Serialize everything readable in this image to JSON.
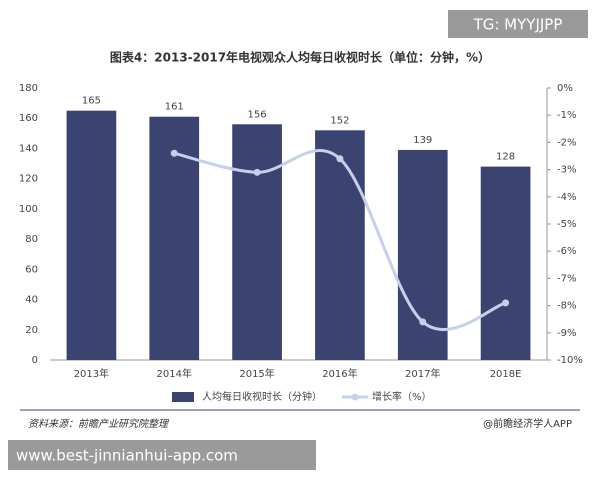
{
  "watermark": "TG: MYYJJPP",
  "source": "资料来源：前瞻产业研究院整理",
  "credit": "@前瞻经济学人APP",
  "footer_url": "www.best-jinnianhui-app.com",
  "chart_data": {
    "type": "bar",
    "title": "图表4：2013-2017年电视观众人均每日收视时长（单位：分钟，%）",
    "categories": [
      "2013年",
      "2014年",
      "2015年",
      "2016年",
      "2017年",
      "2018E"
    ],
    "series": [
      {
        "name": "人均每日收视时长（分钟）",
        "type": "bar",
        "color": "#3b4470",
        "values": [
          165,
          161,
          156,
          152,
          139,
          128
        ]
      },
      {
        "name": "增长率（%）",
        "type": "line",
        "axis": "y2",
        "color": "#c5d0ea",
        "values": [
          null,
          -2.4,
          -3.1,
          -2.6,
          -8.6,
          -7.9
        ]
      }
    ],
    "ylim": [
      0,
      180
    ],
    "yticks": [
      0,
      20,
      40,
      60,
      80,
      100,
      120,
      140,
      160,
      180
    ],
    "y2lim": [
      -10,
      0
    ],
    "y2ticks": [
      {
        "value": 0,
        "label": "0%"
      },
      {
        "value": -1,
        "label": "-1%"
      },
      {
        "value": -2,
        "label": "-2%"
      },
      {
        "value": -3,
        "label": "-3%"
      },
      {
        "value": -4,
        "label": "-4%"
      },
      {
        "value": -5,
        "label": "-5%"
      },
      {
        "value": -6,
        "label": "-6%"
      },
      {
        "value": -7,
        "label": "-7%"
      },
      {
        "value": -8,
        "label": "-8%"
      },
      {
        "value": -9,
        "label": "-9%"
      },
      {
        "value": -10,
        "label": "-10%"
      }
    ],
    "grid": false
  }
}
